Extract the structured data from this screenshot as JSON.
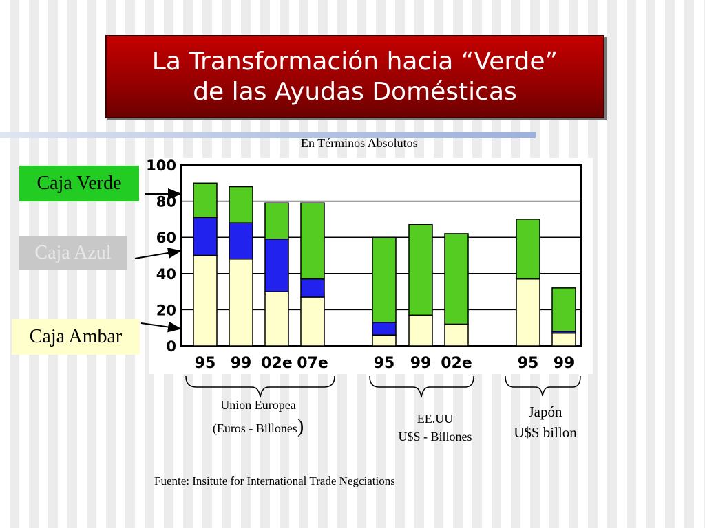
{
  "title": {
    "line1": "La Transformación hacia “Verde”",
    "line2": "de las Ayudas Domésticas"
  },
  "subtitle": "En Términos Absolutos",
  "boxes": {
    "verde": "Caja Verde",
    "azul": "Caja Azul",
    "ambar": "Caja Ambar"
  },
  "groups": {
    "eu": {
      "line1": "Union Europea",
      "line2": "(Euros - Billones",
      "line2_paren": ")"
    },
    "us": {
      "line1": "EE.UU",
      "line2": "U$S - Billones"
    },
    "jp": {
      "line1": "Japón",
      "line2": "U$S billon"
    }
  },
  "source": "Fuente: Insitute for International Trade Negciations",
  "colors": {
    "green": "#55cc22",
    "blue": "#2222ee",
    "amber": "#ffffcc"
  },
  "chart_data": {
    "type": "bar",
    "stacked": true,
    "ylim": [
      0,
      100
    ],
    "yticks": [
      "0",
      "20",
      "40",
      "60",
      "80",
      "100"
    ],
    "grid": true,
    "categories": [
      "95",
      "99",
      "02e",
      "07e",
      "95",
      "99",
      "02e",
      "95",
      "99"
    ],
    "category_groups": [
      "eu",
      "eu",
      "eu",
      "eu",
      "us",
      "us",
      "us",
      "jp",
      "jp"
    ],
    "series": [
      {
        "name": "Caja Ambar",
        "values": [
          50,
          48,
          30,
          27,
          6,
          17,
          12,
          37,
          7
        ]
      },
      {
        "name": "Caja Azul",
        "values": [
          21,
          20,
          29,
          10,
          7,
          0,
          0,
          0,
          1
        ]
      },
      {
        "name": "Caja Verde",
        "values": [
          19,
          20,
          20,
          42,
          47,
          50,
          50,
          33,
          24
        ]
      }
    ]
  }
}
